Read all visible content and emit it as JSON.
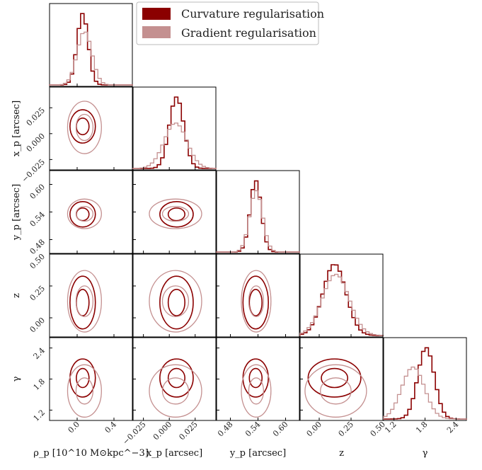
{
  "chart_data": {
    "type": "corner",
    "parameters": [
      {
        "key": "rho",
        "label": "ρ_p [10^10 M⊙kpc^−3]",
        "ticks": [
          "0.0",
          "0.4"
        ],
        "range": [
          -0.3,
          0.6
        ]
      },
      {
        "key": "xp",
        "label": "x_p [arcsec]",
        "ticks": [
          "−0.025",
          "0.000",
          "0.025"
        ],
        "range": [
          -0.035,
          0.045
        ]
      },
      {
        "key": "yp",
        "label": "y_p [arcsec]",
        "ticks": [
          "0.48",
          "0.54",
          "0.60"
        ],
        "range": [
          0.45,
          0.63
        ]
      },
      {
        "key": "z",
        "label": "z",
        "ticks": [
          "0.00",
          "0.25",
          "0.50"
        ],
        "range": [
          -0.15,
          0.5
        ]
      },
      {
        "key": "gamma",
        "label": "γ",
        "ticks": [
          "1.2",
          "1.8",
          "2.4"
        ],
        "range": [
          1.0,
          2.6
        ]
      }
    ],
    "series": [
      {
        "name": "Curvature regularisation",
        "color": "#8b0000",
        "means": [
          0.06,
          0.007,
          0.535,
          0.12,
          1.82
        ],
        "sigmas": [
          0.06,
          0.007,
          0.012,
          0.09,
          0.16
        ]
      },
      {
        "name": "Gradient regularisation",
        "color": "#c49090",
        "means": [
          0.08,
          0.006,
          0.536,
          0.13,
          1.57
        ],
        "sigmas": [
          0.08,
          0.011,
          0.014,
          0.105,
          0.22
        ]
      }
    ]
  }
}
